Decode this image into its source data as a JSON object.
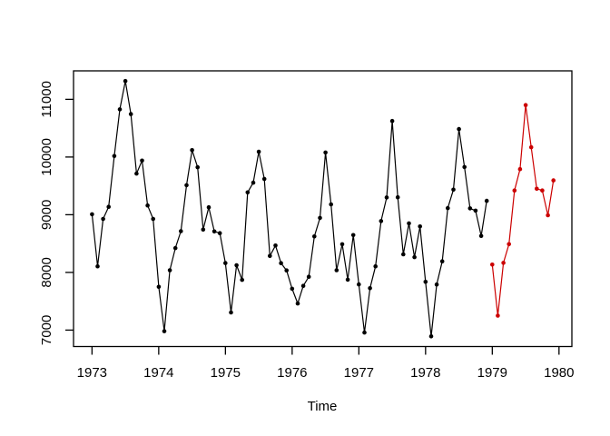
{
  "chart_data": {
    "type": "line",
    "title": "",
    "xlabel": "Time",
    "ylabel": "",
    "x_ticks": [
      1973,
      1974,
      1975,
      1976,
      1977,
      1978,
      1979,
      1980
    ],
    "y_ticks": [
      7000,
      8000,
      9000,
      10000,
      11000
    ],
    "xlim": [
      1972.723,
      1980.193
    ],
    "ylim": [
      6715,
      11494
    ],
    "grid": false,
    "legend": "none",
    "frame_color": "#000000",
    "series": [
      {
        "name": "observed",
        "color": "#000000",
        "marker": "filled-circle",
        "start_year": 1973,
        "points_per_year": 12,
        "values": [
          9007,
          8106,
          8928,
          9137,
          10017,
          10826,
          11317,
          10744,
          9713,
          9938,
          9161,
          8927,
          7750,
          6981,
          8038,
          8422,
          8714,
          9512,
          10120,
          9823,
          8743,
          9129,
          8710,
          8680,
          8162,
          7306,
          8124,
          7870,
          9387,
          9556,
          10093,
          9620,
          8285,
          8466,
          8160,
          8034,
          7717,
          7461,
          7767,
          7925,
          8623,
          8945,
          10078,
          9179,
          8037,
          8488,
          7874,
          8647,
          7792,
          6957,
          7726,
          8106,
          8890,
          9299,
          10625,
          9302,
          8314,
          8850,
          8265,
          8796,
          7836,
          6892,
          7791,
          8192,
          9115,
          9434,
          10484,
          9827,
          9110,
          9070,
          8633,
          9240
        ]
      },
      {
        "name": "forecast",
        "color": "#cc0000",
        "marker": "filled-circle",
        "start_year": 1979,
        "points_per_year": 12,
        "values": [
          8135,
          7250,
          8165,
          8490,
          9420,
          9790,
          10900,
          10170,
          9450,
          9420,
          8990,
          9595
        ]
      }
    ]
  }
}
